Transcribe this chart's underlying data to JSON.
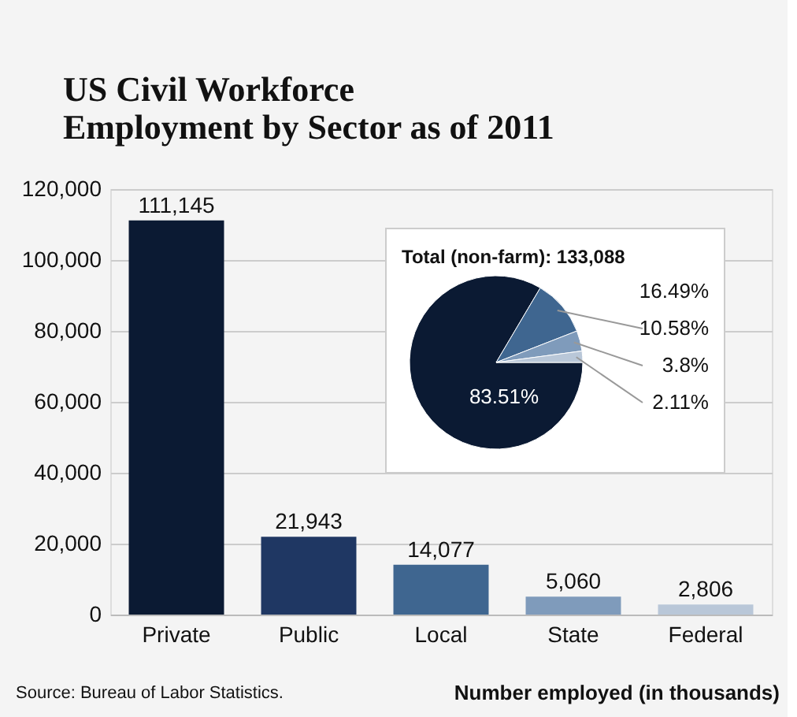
{
  "chart_data": [
    {
      "type": "bar",
      "title": [
        "US Civil Workforce",
        "Employment by Sector as of 2011"
      ],
      "categories": [
        "Private",
        "Public",
        "Local",
        "State",
        "Federal"
      ],
      "values": [
        111145,
        21943,
        14077,
        5060,
        2806
      ],
      "colors": [
        "#0b1a33",
        "#1f3763",
        "#3f6690",
        "#7f9bbb",
        "#b9c7d8"
      ],
      "ylim": [
        0,
        120000
      ],
      "yticks": [
        0,
        {
          "value": 20000,
          "label": "20,000"
        },
        {
          "value": 40000,
          "label": "40,000"
        },
        {
          "value": 60000,
          "label": "60,000"
        },
        {
          "value": 80000,
          "label": "80,000"
        },
        {
          "value": 100000,
          "label": "100,000"
        },
        {
          "value": 120000,
          "label": "120,000"
        }
      ],
      "grid": "y",
      "value_labels": [
        "111,145",
        "21,943",
        "14,077",
        "5,060",
        "2,806"
      ],
      "annotations": [
        "Source: Bureau of Labor Statistics.",
        "Number employed (in thousands)"
      ]
    },
    {
      "type": "pie",
      "title": "Total (non-farm): 133,088",
      "categories": [
        null,
        null,
        null,
        null
      ],
      "values": [
        83.51,
        10.58,
        3.8,
        2.11
      ],
      "colors": [
        "#0b1a33",
        "#3f6690",
        "#7f9bbb",
        "#b9c7d8"
      ],
      "value_labels": [
        "83.51%",
        "10.58%",
        "3.8%",
        "2.11%"
      ],
      "annotations": [
        "16.49%"
      ]
    }
  ]
}
